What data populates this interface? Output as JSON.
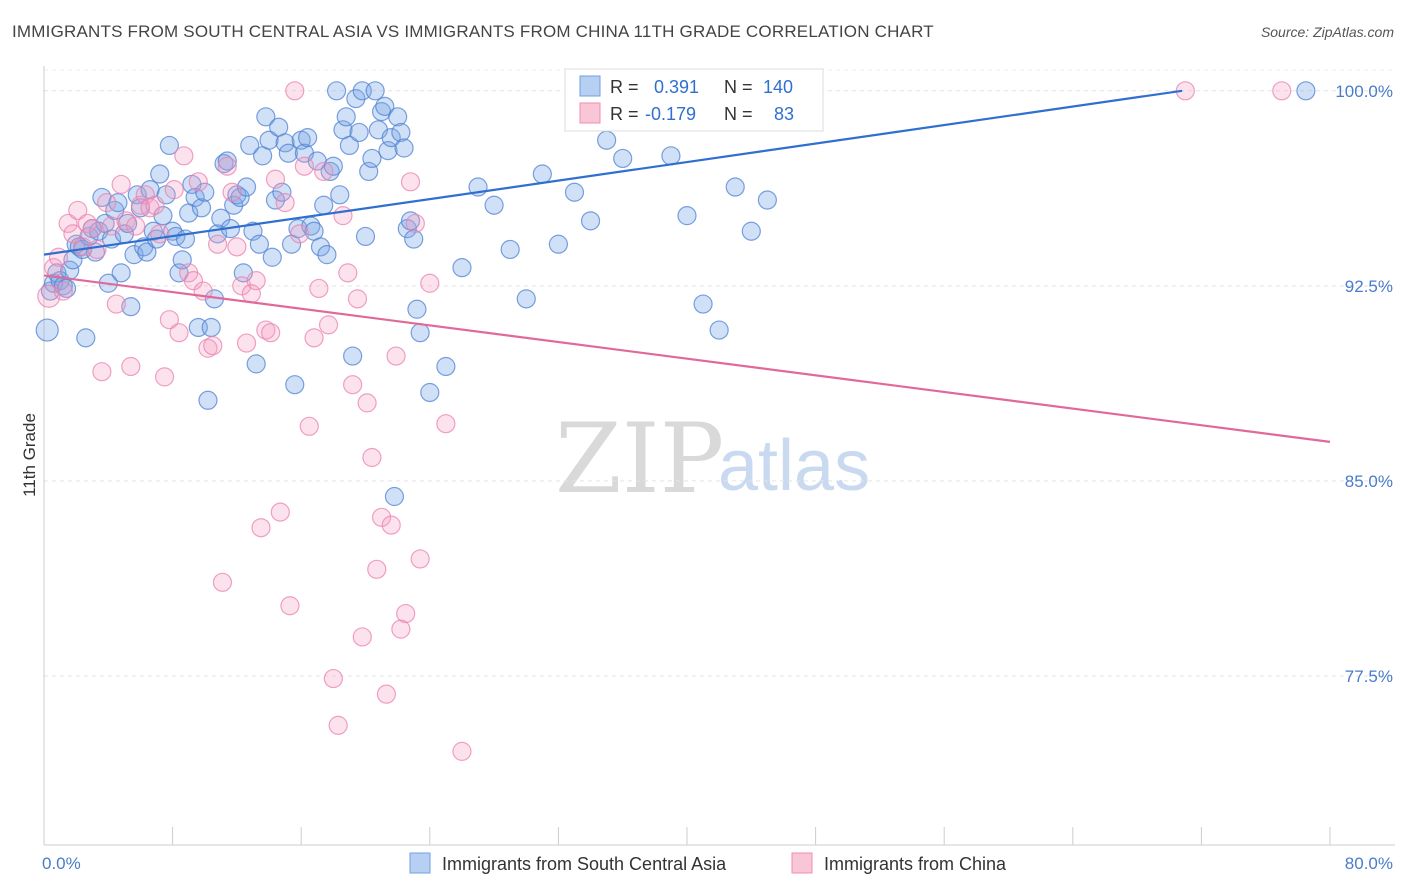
{
  "title": "IMMIGRANTS FROM SOUTH CENTRAL ASIA VS IMMIGRANTS FROM CHINA 11TH GRADE CORRELATION CHART",
  "source": "Source: ZipAtlas.com",
  "watermark": {
    "zip": "ZIP",
    "atlas": "atlas"
  },
  "colors": {
    "blue": "#6f9fe0",
    "blue_line": "#2f6fd0",
    "pink": "#f08db0",
    "pink_line": "#e0699a"
  },
  "stats": {
    "blue": {
      "r_label": "R =",
      "r": "0.391",
      "n_label": "N =",
      "n": "140"
    },
    "pink": {
      "r_label": "R =",
      "r": "-0.179",
      "n_label": "N =",
      "n": "83"
    }
  },
  "chart_data": {
    "type": "scatter",
    "title": "IMMIGRANTS FROM SOUTH CENTRAL ASIA VS IMMIGRANTS FROM CHINA 11TH GRADE CORRELATION CHART",
    "xlabel": "",
    "ylabel": "11th Grade",
    "xlim": [
      0,
      80
    ],
    "ylim": [
      71.0,
      100.8
    ],
    "x_tick_labels": [
      "0.0%",
      "80.0%"
    ],
    "y_ticks": [
      77.5,
      85.0,
      92.5,
      100.0
    ],
    "y_tick_labels": [
      "77.5%",
      "85.0%",
      "92.5%",
      "100.0%"
    ],
    "grid": "horizontal dashed",
    "legend_position": "bottom",
    "series": [
      {
        "name": "Immigrants from South Central Asia",
        "color": "#6f9fe0",
        "trend": {
          "x": [
            0,
            70.8
          ],
          "y": [
            93.7,
            100.0
          ]
        },
        "points": [
          [
            0.2,
            90.8
          ],
          [
            0.4,
            92.3
          ],
          [
            0.6,
            92.6
          ],
          [
            0.8,
            93.0
          ],
          [
            1.0,
            92.7
          ],
          [
            1.2,
            92.5
          ],
          [
            1.4,
            92.4
          ],
          [
            1.6,
            93.1
          ],
          [
            1.8,
            93.5
          ],
          [
            2.0,
            94.1
          ],
          [
            2.2,
            94.0
          ],
          [
            2.4,
            93.9
          ],
          [
            2.6,
            90.5
          ],
          [
            2.8,
            94.4
          ],
          [
            3.0,
            94.7
          ],
          [
            3.2,
            93.8
          ],
          [
            3.4,
            94.6
          ],
          [
            3.6,
            95.9
          ],
          [
            3.8,
            94.9
          ],
          [
            4.0,
            92.6
          ],
          [
            4.2,
            94.3
          ],
          [
            4.4,
            95.4
          ],
          [
            4.6,
            95.7
          ],
          [
            4.8,
            93.0
          ],
          [
            5.0,
            94.5
          ],
          [
            5.2,
            94.9
          ],
          [
            5.4,
            91.7
          ],
          [
            5.6,
            93.7
          ],
          [
            5.8,
            96.0
          ],
          [
            6.0,
            95.5
          ],
          [
            6.2,
            94.0
          ],
          [
            6.4,
            93.8
          ],
          [
            6.6,
            96.2
          ],
          [
            6.8,
            94.6
          ],
          [
            7.0,
            94.3
          ],
          [
            7.2,
            96.8
          ],
          [
            7.4,
            95.2
          ],
          [
            7.6,
            96.0
          ],
          [
            7.8,
            97.9
          ],
          [
            8.0,
            94.6
          ],
          [
            8.2,
            94.4
          ],
          [
            8.4,
            93.0
          ],
          [
            8.6,
            93.5
          ],
          [
            8.8,
            94.3
          ],
          [
            9.0,
            95.3
          ],
          [
            9.2,
            96.4
          ],
          [
            9.4,
            95.9
          ],
          [
            9.6,
            90.9
          ],
          [
            9.8,
            95.5
          ],
          [
            10.0,
            96.1
          ],
          [
            10.2,
            88.1
          ],
          [
            10.4,
            90.9
          ],
          [
            10.6,
            92.0
          ],
          [
            10.8,
            94.5
          ],
          [
            11.0,
            95.1
          ],
          [
            11.2,
            97.2
          ],
          [
            11.4,
            97.3
          ],
          [
            11.6,
            94.7
          ],
          [
            11.8,
            95.6
          ],
          [
            12.0,
            96.0
          ],
          [
            12.2,
            95.9
          ],
          [
            12.4,
            93.0
          ],
          [
            12.6,
            96.3
          ],
          [
            12.8,
            97.9
          ],
          [
            13.0,
            94.6
          ],
          [
            13.2,
            89.5
          ],
          [
            13.4,
            94.1
          ],
          [
            13.6,
            97.5
          ],
          [
            13.8,
            99.0
          ],
          [
            14.0,
            98.1
          ],
          [
            14.2,
            93.6
          ],
          [
            14.4,
            95.8
          ],
          [
            14.6,
            98.6
          ],
          [
            14.8,
            96.1
          ],
          [
            15.0,
            98.0
          ],
          [
            15.2,
            97.6
          ],
          [
            15.4,
            94.1
          ],
          [
            15.6,
            88.7
          ],
          [
            15.8,
            94.7
          ],
          [
            16.0,
            98.1
          ],
          [
            16.2,
            97.6
          ],
          [
            16.4,
            98.2
          ],
          [
            16.6,
            94.8
          ],
          [
            16.8,
            94.6
          ],
          [
            17.0,
            97.3
          ],
          [
            17.2,
            94.0
          ],
          [
            17.4,
            95.6
          ],
          [
            17.6,
            93.7
          ],
          [
            17.8,
            96.9
          ],
          [
            18.0,
            97.1
          ],
          [
            18.2,
            100.0
          ],
          [
            18.4,
            96.0
          ],
          [
            18.6,
            98.5
          ],
          [
            18.8,
            99.0
          ],
          [
            19.0,
            97.9
          ],
          [
            19.2,
            89.8
          ],
          [
            19.4,
            99.7
          ],
          [
            19.6,
            98.4
          ],
          [
            19.8,
            100.0
          ],
          [
            20.0,
            94.4
          ],
          [
            20.2,
            96.9
          ],
          [
            20.4,
            97.4
          ],
          [
            20.6,
            100.0
          ],
          [
            20.8,
            98.5
          ],
          [
            21.0,
            99.2
          ],
          [
            21.2,
            99.4
          ],
          [
            21.4,
            97.7
          ],
          [
            21.6,
            98.2
          ],
          [
            21.8,
            84.4
          ],
          [
            22.0,
            99.0
          ],
          [
            22.2,
            98.4
          ],
          [
            22.4,
            97.8
          ],
          [
            22.6,
            94.7
          ],
          [
            22.8,
            95.0
          ],
          [
            23.0,
            94.3
          ],
          [
            23.2,
            91.6
          ],
          [
            23.4,
            90.7
          ],
          [
            24.0,
            88.4
          ],
          [
            25.0,
            89.4
          ],
          [
            26.0,
            93.2
          ],
          [
            27.0,
            96.3
          ],
          [
            28.0,
            95.6
          ],
          [
            29.0,
            93.9
          ],
          [
            30.0,
            92.0
          ],
          [
            31.0,
            96.8
          ],
          [
            32.0,
            94.1
          ],
          [
            33.0,
            96.1
          ],
          [
            34.0,
            95.0
          ],
          [
            35.0,
            98.1
          ],
          [
            36.0,
            97.4
          ],
          [
            37.0,
            99.6
          ],
          [
            38.0,
            99.3
          ],
          [
            39.0,
            97.5
          ],
          [
            40.0,
            95.2
          ],
          [
            41.0,
            91.8
          ],
          [
            42.0,
            90.8
          ],
          [
            43.0,
            96.3
          ],
          [
            44.0,
            94.6
          ],
          [
            45.0,
            95.8
          ],
          [
            78.5,
            100.0
          ]
        ]
      },
      {
        "name": "Immigrants from China",
        "color": "#f08db0",
        "trend": {
          "x": [
            0,
            80
          ],
          "y": [
            92.9,
            86.5
          ]
        },
        "points": [
          [
            0.3,
            92.1
          ],
          [
            0.6,
            93.2
          ],
          [
            0.9,
            93.6
          ],
          [
            1.2,
            92.3
          ],
          [
            1.5,
            94.9
          ],
          [
            1.8,
            94.5
          ],
          [
            2.1,
            95.4
          ],
          [
            2.4,
            94.0
          ],
          [
            2.7,
            94.9
          ],
          [
            3.0,
            94.7
          ],
          [
            3.3,
            93.9
          ],
          [
            3.6,
            89.2
          ],
          [
            3.9,
            95.7
          ],
          [
            4.2,
            94.8
          ],
          [
            4.5,
            91.8
          ],
          [
            4.8,
            96.4
          ],
          [
            5.1,
            95.0
          ],
          [
            5.4,
            89.4
          ],
          [
            5.7,
            94.8
          ],
          [
            6.0,
            95.6
          ],
          [
            6.3,
            96.0
          ],
          [
            6.6,
            95.5
          ],
          [
            6.9,
            95.6
          ],
          [
            7.2,
            94.5
          ],
          [
            7.5,
            89.0
          ],
          [
            7.8,
            91.2
          ],
          [
            8.1,
            96.2
          ],
          [
            8.4,
            90.7
          ],
          [
            8.7,
            97.5
          ],
          [
            9.0,
            93.0
          ],
          [
            9.3,
            92.7
          ],
          [
            9.6,
            96.5
          ],
          [
            9.9,
            92.3
          ],
          [
            10.2,
            90.1
          ],
          [
            10.5,
            90.2
          ],
          [
            10.8,
            94.1
          ],
          [
            11.1,
            81.1
          ],
          [
            11.4,
            97.1
          ],
          [
            11.7,
            96.1
          ],
          [
            12.0,
            94.0
          ],
          [
            12.3,
            92.5
          ],
          [
            12.6,
            90.3
          ],
          [
            12.9,
            92.2
          ],
          [
            13.2,
            92.7
          ],
          [
            13.5,
            83.2
          ],
          [
            13.8,
            90.8
          ],
          [
            14.1,
            90.7
          ],
          [
            14.4,
            96.6
          ],
          [
            14.7,
            83.8
          ],
          [
            15.0,
            95.7
          ],
          [
            15.3,
            80.2
          ],
          [
            15.6,
            100.0
          ],
          [
            15.9,
            94.5
          ],
          [
            16.2,
            97.1
          ],
          [
            16.5,
            87.1
          ],
          [
            16.8,
            90.5
          ],
          [
            17.1,
            92.4
          ],
          [
            17.4,
            96.9
          ],
          [
            17.7,
            91.0
          ],
          [
            18.0,
            77.4
          ],
          [
            18.3,
            75.6
          ],
          [
            18.6,
            95.2
          ],
          [
            18.9,
            93.0
          ],
          [
            19.2,
            88.7
          ],
          [
            19.5,
            92.0
          ],
          [
            19.8,
            79.0
          ],
          [
            20.1,
            88.0
          ],
          [
            20.4,
            85.9
          ],
          [
            20.7,
            81.6
          ],
          [
            21.0,
            83.6
          ],
          [
            21.3,
            76.8
          ],
          [
            21.6,
            83.3
          ],
          [
            21.9,
            89.8
          ],
          [
            22.2,
            79.3
          ],
          [
            22.5,
            79.9
          ],
          [
            22.8,
            96.5
          ],
          [
            23.1,
            94.9
          ],
          [
            23.4,
            82.0
          ],
          [
            24.0,
            92.6
          ],
          [
            25.0,
            87.2
          ],
          [
            26.0,
            74.6
          ],
          [
            71.0,
            100.0
          ],
          [
            77.0,
            100.0
          ]
        ]
      }
    ]
  },
  "legend": {
    "blue_label": "Immigrants from South Central Asia",
    "pink_label": "Immigrants from China"
  }
}
